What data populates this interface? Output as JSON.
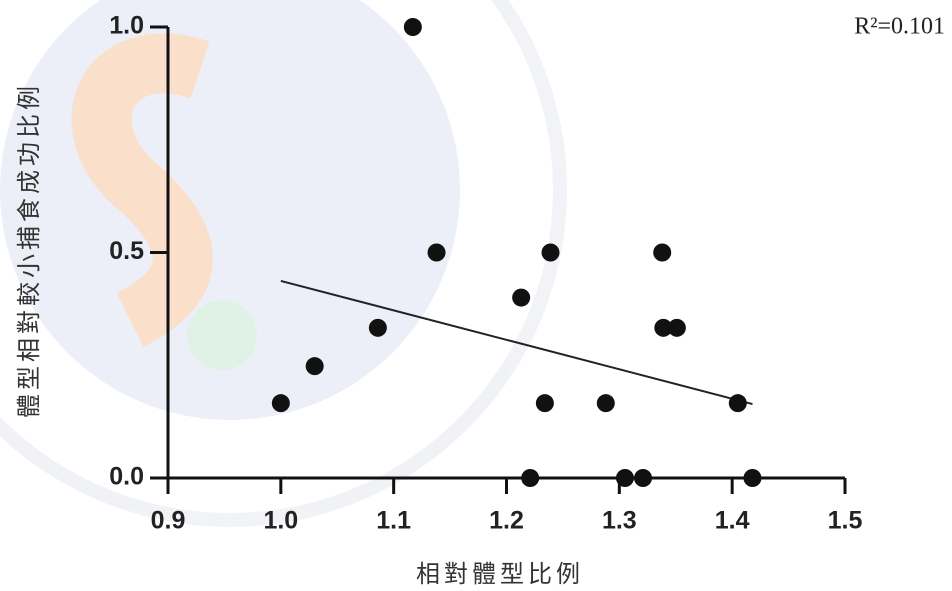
{
  "chart_data": {
    "type": "scatter",
    "x_label": "相對體型比例",
    "y_label": "體型相對較小捕食成功比例",
    "annotation": "R²=0.101",
    "color": "#111111",
    "x": [
      1.0,
      1.03,
      1.086,
      1.117,
      1.138,
      1.213,
      1.239,
      1.234,
      1.221,
      1.288,
      1.305,
      1.321,
      1.338,
      1.339,
      1.351,
      1.405,
      1.418
    ],
    "y": [
      0.166,
      0.248,
      0.333,
      1.0,
      0.5,
      0.4,
      0.5,
      0.166,
      0,
      0.166,
      0,
      0,
      0.5,
      0.333,
      0.333,
      0.166,
      0
    ],
    "trend_line": {
      "x": [
        1.0,
        1.418
      ],
      "y": [
        0.437,
        0.164
      ]
    },
    "xlim": [
      0.9,
      1.5
    ],
    "ylim": [
      0,
      1.0
    ],
    "xticks": [
      0.9,
      {
        "value": 1.0,
        "label": "1.0"
      },
      1.1,
      1.2,
      1.3,
      1.4,
      1.5
    ],
    "yticks": [
      {
        "value": 0,
        "label": "0.0"
      },
      0.5,
      {
        "value": 1.0,
        "label": "1.0"
      }
    ]
  }
}
